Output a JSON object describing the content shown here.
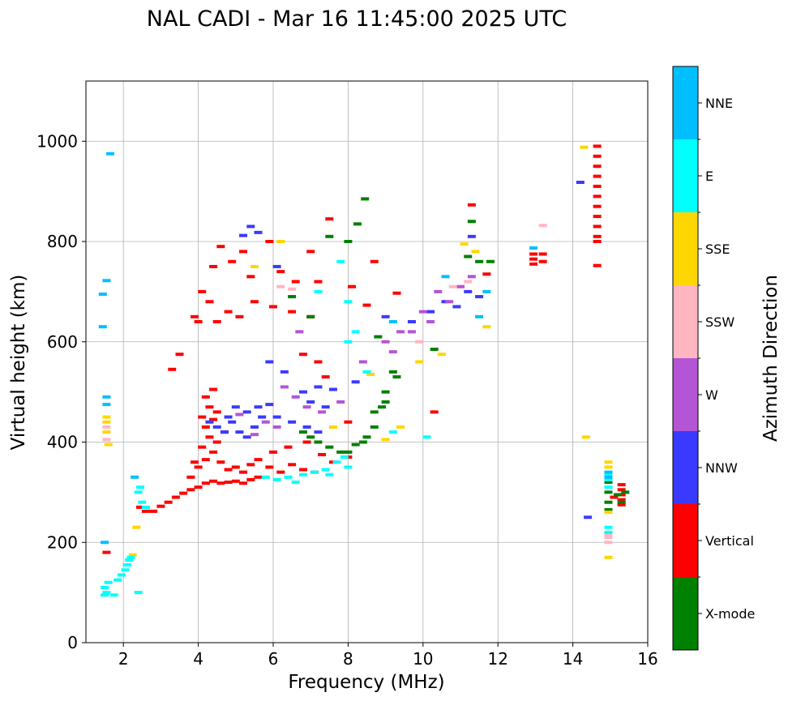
{
  "chart_data": {
    "type": "scatter",
    "title": "NAL CADI - Mar 16 11:45:00 2025 UTC",
    "xlabel": "Frequency (MHz)",
    "ylabel": "Virtual height (km)",
    "xlim": [
      1,
      16
    ],
    "ylim": [
      0,
      1120
    ],
    "xticks": [
      2,
      4,
      6,
      8,
      10,
      12,
      14,
      16
    ],
    "yticks": [
      0,
      200,
      400,
      600,
      800,
      1000
    ],
    "grid": true,
    "colorbar": {
      "label": "Azimuth Direction",
      "categories": [
        {
          "name": "X-mode",
          "color": "#008000"
        },
        {
          "name": "Vertical",
          "color": "#ff0000"
        },
        {
          "name": "NNW",
          "color": "#3a3aff"
        },
        {
          "name": "W",
          "color": "#b455d6"
        },
        {
          "name": "SSW",
          "color": "#ffb6c1"
        },
        {
          "name": "SSE",
          "color": "#ffd700"
        },
        {
          "name": "E",
          "color": "#00ffff"
        },
        {
          "name": "NNE",
          "color": "#00bfff"
        }
      ]
    },
    "series": [
      {
        "name": "Vertical",
        "points": [
          [
            1.55,
            180
          ],
          [
            2.45,
            270
          ],
          [
            2.6,
            262
          ],
          [
            2.8,
            262
          ],
          [
            3.0,
            272
          ],
          [
            3.2,
            280
          ],
          [
            3.4,
            290
          ],
          [
            3.6,
            298
          ],
          [
            3.8,
            305
          ],
          [
            4.0,
            310
          ],
          [
            4.2,
            318
          ],
          [
            4.4,
            322
          ],
          [
            4.6,
            318
          ],
          [
            4.8,
            320
          ],
          [
            5.0,
            322
          ],
          [
            5.2,
            318
          ],
          [
            5.4,
            325
          ],
          [
            5.6,
            330
          ],
          [
            3.8,
            330
          ],
          [
            4.0,
            350
          ],
          [
            4.2,
            365
          ],
          [
            4.4,
            380
          ],
          [
            4.6,
            360
          ],
          [
            4.8,
            345
          ],
          [
            5.0,
            350
          ],
          [
            5.2,
            340
          ],
          [
            5.4,
            355
          ],
          [
            3.9,
            360
          ],
          [
            4.1,
            390
          ],
          [
            4.3,
            410
          ],
          [
            4.5,
            400
          ],
          [
            4.7,
            420
          ],
          [
            4.2,
            430
          ],
          [
            4.4,
            445
          ],
          [
            4.1,
            450
          ],
          [
            4.3,
            470
          ],
          [
            4.5,
            460
          ],
          [
            4.2,
            490
          ],
          [
            4.4,
            505
          ],
          [
            5.6,
            365
          ],
          [
            5.9,
            350
          ],
          [
            6.2,
            340
          ],
          [
            6.5,
            355
          ],
          [
            6.8,
            345
          ],
          [
            7.1,
            340
          ],
          [
            6.0,
            380
          ],
          [
            6.4,
            390
          ],
          [
            6.9,
            400
          ],
          [
            7.3,
            375
          ],
          [
            7.6,
            360
          ],
          [
            8.0,
            370
          ],
          [
            3.9,
            650
          ],
          [
            4.0,
            640
          ],
          [
            4.1,
            700
          ],
          [
            4.3,
            680
          ],
          [
            4.5,
            640
          ],
          [
            4.8,
            660
          ],
          [
            5.1,
            650
          ],
          [
            5.5,
            680
          ],
          [
            6.0,
            670
          ],
          [
            6.5,
            660
          ],
          [
            7.0,
            650
          ],
          [
            4.6,
            790
          ],
          [
            4.9,
            760
          ],
          [
            5.2,
            780
          ],
          [
            5.4,
            730
          ],
          [
            5.9,
            800
          ],
          [
            6.2,
            740
          ],
          [
            6.6,
            720
          ],
          [
            7.0,
            780
          ],
          [
            7.5,
            845
          ],
          [
            7.2,
            720
          ],
          [
            3.3,
            545
          ],
          [
            3.5,
            575
          ],
          [
            4.4,
            750
          ],
          [
            8.1,
            710
          ],
          [
            8.5,
            673
          ],
          [
            8.7,
            760
          ],
          [
            9.3,
            697
          ],
          [
            10.3,
            460
          ],
          [
            11.3,
            873
          ],
          [
            11.7,
            735
          ],
          [
            12.95,
            755
          ],
          [
            12.95,
            765
          ],
          [
            12.95,
            775
          ],
          [
            13.2,
            760
          ],
          [
            13.2,
            775
          ],
          [
            14.65,
            990
          ],
          [
            14.65,
            970
          ],
          [
            14.65,
            950
          ],
          [
            14.65,
            930
          ],
          [
            14.65,
            910
          ],
          [
            14.65,
            890
          ],
          [
            14.65,
            870
          ],
          [
            14.65,
            850
          ],
          [
            14.65,
            830
          ],
          [
            14.65,
            810
          ],
          [
            14.65,
            800
          ],
          [
            14.65,
            752
          ],
          [
            15.3,
            275
          ],
          [
            15.3,
            285
          ],
          [
            15.3,
            295
          ],
          [
            15.3,
            305
          ],
          [
            15.3,
            315
          ],
          [
            15.1,
            290
          ],
          [
            7.2,
            560
          ],
          [
            7.4,
            530
          ],
          [
            6.8,
            575
          ],
          [
            8.0,
            440
          ]
        ]
      },
      {
        "name": "X-mode",
        "points": [
          [
            6.8,
            420
          ],
          [
            7.0,
            410
          ],
          [
            7.2,
            400
          ],
          [
            7.5,
            390
          ],
          [
            7.8,
            380
          ],
          [
            8.0,
            380
          ],
          [
            8.2,
            395
          ],
          [
            8.4,
            400
          ],
          [
            8.7,
            430
          ],
          [
            8.7,
            460
          ],
          [
            8.9,
            470
          ],
          [
            9.0,
            500
          ],
          [
            9.2,
            540
          ],
          [
            9.0,
            480
          ],
          [
            8.5,
            410
          ],
          [
            8.0,
            800
          ],
          [
            8.25,
            835
          ],
          [
            8.45,
            885
          ],
          [
            8.8,
            610
          ],
          [
            9.3,
            530
          ],
          [
            10.3,
            585
          ],
          [
            11.2,
            770
          ],
          [
            11.3,
            840
          ],
          [
            11.5,
            760
          ],
          [
            11.8,
            760
          ],
          [
            7.0,
            650
          ],
          [
            7.5,
            810
          ],
          [
            6.5,
            690
          ],
          [
            14.95,
            265
          ],
          [
            14.95,
            280
          ],
          [
            14.95,
            300
          ],
          [
            14.95,
            320
          ],
          [
            15.3,
            280
          ],
          [
            15.4,
            300
          ],
          [
            15.2,
            295
          ]
        ]
      },
      {
        "name": "NNW",
        "points": [
          [
            4.3,
            440
          ],
          [
            4.5,
            430
          ],
          [
            4.7,
            420
          ],
          [
            4.9,
            440
          ],
          [
            5.1,
            420
          ],
          [
            5.3,
            410
          ],
          [
            5.5,
            430
          ],
          [
            5.7,
            450
          ],
          [
            5.3,
            460
          ],
          [
            5.0,
            470
          ],
          [
            4.8,
            450
          ],
          [
            5.6,
            470
          ],
          [
            5.9,
            475
          ],
          [
            6.1,
            450
          ],
          [
            6.5,
            440
          ],
          [
            6.9,
            430
          ],
          [
            7.2,
            420
          ],
          [
            7.4,
            470
          ],
          [
            7.0,
            480
          ],
          [
            5.4,
            830
          ],
          [
            5.6,
            818
          ],
          [
            5.2,
            812
          ],
          [
            6.1,
            750
          ],
          [
            5.9,
            560
          ],
          [
            6.3,
            540
          ],
          [
            6.8,
            500
          ],
          [
            7.2,
            510
          ],
          [
            7.6,
            505
          ],
          [
            8.2,
            520
          ],
          [
            9.0,
            650
          ],
          [
            9.7,
            640
          ],
          [
            10.2,
            660
          ],
          [
            10.6,
            680
          ],
          [
            10.9,
            670
          ],
          [
            11.2,
            700
          ],
          [
            11.5,
            690
          ],
          [
            11.3,
            810
          ],
          [
            14.2,
            918
          ],
          [
            14.4,
            250
          ]
        ]
      },
      {
        "name": "W",
        "points": [
          [
            6.3,
            510
          ],
          [
            6.6,
            490
          ],
          [
            6.9,
            470
          ],
          [
            7.3,
            460
          ],
          [
            7.8,
            480
          ],
          [
            8.4,
            560
          ],
          [
            9.0,
            600
          ],
          [
            9.4,
            620
          ],
          [
            9.7,
            620
          ],
          [
            10.0,
            660
          ],
          [
            10.4,
            700
          ],
          [
            10.7,
            680
          ],
          [
            11.0,
            710
          ],
          [
            11.3,
            730
          ],
          [
            10.2,
            640
          ],
          [
            9.2,
            580
          ],
          [
            6.7,
            620
          ],
          [
            5.5,
            415
          ],
          [
            5.8,
            440
          ],
          [
            6.1,
            430
          ],
          [
            5.1,
            455
          ]
        ]
      },
      {
        "name": "SSW",
        "points": [
          [
            6.2,
            710
          ],
          [
            6.5,
            705
          ],
          [
            9.9,
            600
          ],
          [
            10.8,
            710
          ],
          [
            11.2,
            720
          ],
          [
            13.2,
            832
          ],
          [
            14.95,
            200
          ],
          [
            14.95,
            210
          ],
          [
            14.95,
            215
          ],
          [
            1.55,
            430
          ],
          [
            1.55,
            405
          ]
        ]
      },
      {
        "name": "SSE",
        "points": [
          [
            1.55,
            450
          ],
          [
            1.55,
            440
          ],
          [
            1.55,
            420
          ],
          [
            1.6,
            395
          ],
          [
            2.35,
            230
          ],
          [
            2.25,
            175
          ],
          [
            8.6,
            535
          ],
          [
            9.0,
            405
          ],
          [
            9.4,
            430
          ],
          [
            9.9,
            560
          ],
          [
            10.5,
            575
          ],
          [
            11.1,
            795
          ],
          [
            11.4,
            780
          ],
          [
            11.7,
            630
          ],
          [
            14.3,
            988
          ],
          [
            14.35,
            410
          ],
          [
            14.95,
            170
          ],
          [
            14.95,
            260
          ],
          [
            14.95,
            350
          ],
          [
            14.95,
            360
          ],
          [
            5.5,
            750
          ],
          [
            6.2,
            800
          ],
          [
            7.6,
            430
          ]
        ]
      },
      {
        "name": "E",
        "points": [
          [
            1.5,
            110
          ],
          [
            1.5,
            95
          ],
          [
            1.55,
            100
          ],
          [
            1.6,
            120
          ],
          [
            1.85,
            125
          ],
          [
            1.95,
            135
          ],
          [
            2.05,
            145
          ],
          [
            2.1,
            155
          ],
          [
            2.15,
            165
          ],
          [
            2.2,
            170
          ],
          [
            2.4,
            300
          ],
          [
            2.45,
            310
          ],
          [
            2.5,
            280
          ],
          [
            2.6,
            270
          ],
          [
            2.4,
            100
          ],
          [
            1.75,
            95
          ],
          [
            5.8,
            330
          ],
          [
            6.1,
            325
          ],
          [
            6.4,
            330
          ],
          [
            6.8,
            335
          ],
          [
            7.1,
            340
          ],
          [
            7.4,
            345
          ],
          [
            7.7,
            360
          ],
          [
            7.9,
            370
          ],
          [
            8.0,
            350
          ],
          [
            6.6,
            320
          ],
          [
            7.5,
            335
          ],
          [
            8.0,
            680
          ],
          [
            8.2,
            620
          ],
          [
            8.5,
            540
          ],
          [
            8.0,
            600
          ],
          [
            10.1,
            410
          ],
          [
            9.2,
            420
          ],
          [
            14.95,
            220
          ],
          [
            14.95,
            230
          ],
          [
            14.95,
            310
          ],
          [
            14.95,
            325
          ],
          [
            14.95,
            335
          ],
          [
            7.2,
            700
          ],
          [
            7.8,
            760
          ]
        ]
      },
      {
        "name": "NNE",
        "points": [
          [
            1.55,
            475
          ],
          [
            1.55,
            490
          ],
          [
            1.5,
            200
          ],
          [
            1.55,
            722
          ],
          [
            1.65,
            975
          ],
          [
            1.45,
            630
          ],
          [
            1.45,
            695
          ],
          [
            2.3,
            330
          ],
          [
            9.2,
            640
          ],
          [
            10.6,
            730
          ],
          [
            11.5,
            650
          ],
          [
            11.7,
            700
          ],
          [
            12.95,
            787
          ],
          [
            14.95,
            340
          ],
          [
            14.95,
            330
          ]
        ]
      }
    ]
  }
}
